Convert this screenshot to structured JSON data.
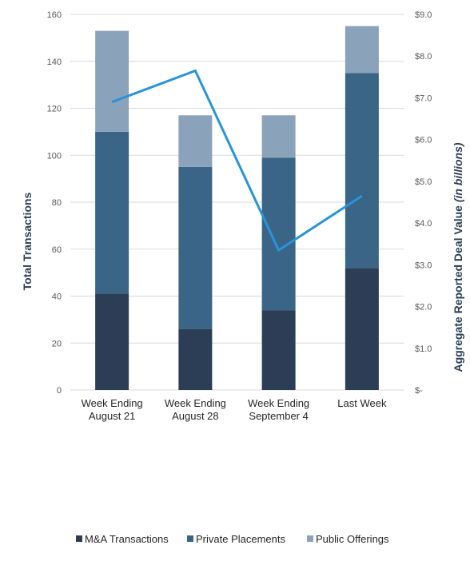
{
  "chart_data": {
    "type": "bar",
    "stacked": true,
    "categories": [
      [
        "Week Ending",
        "August 21"
      ],
      [
        "Week Ending",
        "August 28"
      ],
      [
        "Week Ending",
        "September 4"
      ],
      [
        "Last Week"
      ]
    ],
    "series": [
      {
        "name": "M&A Transactions",
        "values": [
          41,
          26,
          34,
          52
        ],
        "color": "#2b3e55"
      },
      {
        "name": "Private Placements",
        "values": [
          69,
          69,
          65,
          83
        ],
        "color": "#3a6587"
      },
      {
        "name": "Public Offerings",
        "values": [
          43,
          22,
          18,
          20
        ],
        "color": "#8aa3bb"
      }
    ],
    "line_series": {
      "axis": "right",
      "values": [
        6.9,
        7.65,
        3.35,
        4.65
      ],
      "color": "#2894d8"
    },
    "left_axis": {
      "label": "Total Transactions",
      "ylim": [
        0,
        160
      ],
      "ticks": [
        0,
        20,
        40,
        60,
        80,
        100,
        120,
        140,
        160
      ]
    },
    "right_axis": {
      "label_prefix": "Aggregate Reported Deal Value ",
      "label_italic": "(in billions)",
      "ylim": [
        0,
        9
      ],
      "ticks": [
        "$-",
        "$1.0",
        "$2.0",
        "$3.0",
        "$4.0",
        "$5.0",
        "$6.0",
        "$7.0",
        "$8.0",
        "$9.0"
      ]
    },
    "grid": true,
    "legend_position": "bottom"
  }
}
